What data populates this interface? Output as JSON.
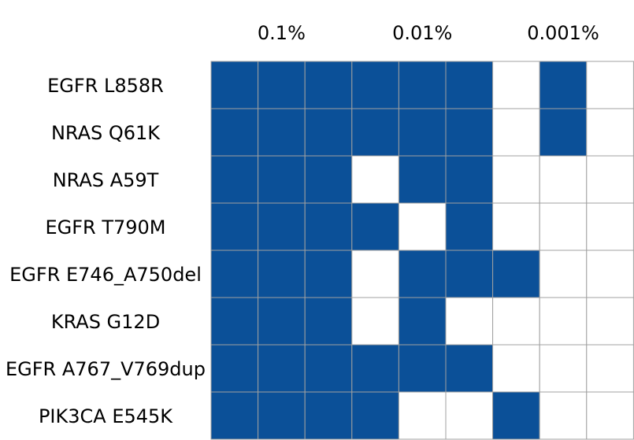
{
  "chart_data": {
    "type": "heatmap",
    "title": "",
    "xlabel": "",
    "ylabel": "",
    "column_group_labels": [
      "0.1%",
      "0.01%",
      "0.001%"
    ],
    "columns_per_group": 3,
    "row_labels": [
      "EGFR L858R",
      "NRAS Q61K",
      "NRAS A59T",
      "EGFR T790M",
      "EGFR E746_A750del",
      "KRAS G12D",
      "EGFR A767_V769dup",
      "PIK3CA E545K"
    ],
    "values": [
      [
        1,
        1,
        1,
        1,
        1,
        1,
        0,
        1,
        0
      ],
      [
        1,
        1,
        1,
        1,
        1,
        1,
        0,
        1,
        0
      ],
      [
        1,
        1,
        1,
        0,
        1,
        1,
        0,
        0,
        0
      ],
      [
        1,
        1,
        1,
        1,
        0,
        1,
        0,
        0,
        0
      ],
      [
        1,
        1,
        1,
        0,
        1,
        1,
        1,
        0,
        0
      ],
      [
        1,
        1,
        1,
        0,
        1,
        0,
        0,
        0,
        0
      ],
      [
        1,
        1,
        1,
        1,
        1,
        1,
        0,
        0,
        0
      ],
      [
        1,
        1,
        1,
        1,
        0,
        0,
        1,
        0,
        0
      ]
    ],
    "colors": {
      "filled": "#0b5098",
      "empty": "#ffffff",
      "grid": "#a0a0a0"
    }
  }
}
